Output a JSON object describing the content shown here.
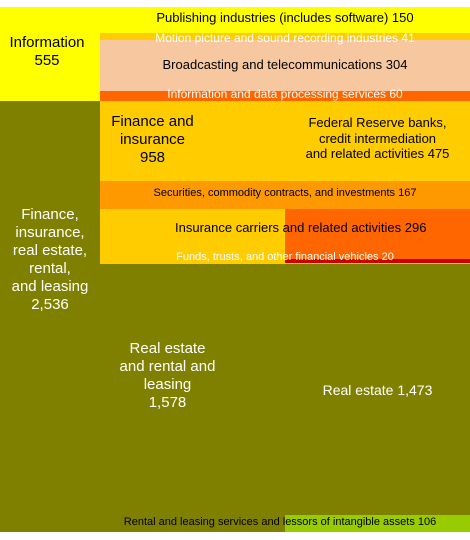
{
  "chart_data": {
    "type": "treemap",
    "title": "",
    "colors": {
      "yellow": "#ffff00",
      "gold": "#ffcc00",
      "peach": "#f7c8a0",
      "orange": "#ff9900",
      "dark_orange": "#ff6600",
      "red_orange": "#ff3300",
      "dark_red": "#cc0000",
      "olive": "#808000",
      "yellow_green": "#99cc00",
      "white": "#ffffff",
      "black": "#000000"
    },
    "groups": [
      {
        "name": "Information",
        "value": 555,
        "value_label": "555",
        "children": [
          {
            "name": "Publishing industries (includes software)",
            "value": 150,
            "value_label": "150"
          },
          {
            "name": "Motion picture and sound recording industries",
            "value": 41,
            "value_label": "41"
          },
          {
            "name": "Broadcasting and telecommunications",
            "value": 304,
            "value_label": "304"
          },
          {
            "name": "Information and data processing services",
            "value": 60,
            "value_label": "60"
          }
        ]
      },
      {
        "name": "Finance, insurance, real estate, rental, and leasing",
        "value": 2536,
        "value_label": "2,536",
        "children": [
          {
            "name": "Finance and insurance",
            "value": 958,
            "value_label": "958",
            "children": [
              {
                "name": "Federal Reserve banks, credit intermediation and related activities",
                "value": 475,
                "value_label": "475"
              },
              {
                "name": "Securities, commodity contracts, and investments",
                "value": 167,
                "value_label": "167"
              },
              {
                "name": "Insurance carriers and related activities",
                "value": 296,
                "value_label": "296"
              },
              {
                "name": "Funds, trusts, and other financial vehicles",
                "value": 20,
                "value_label": "20"
              }
            ]
          },
          {
            "name": "Real estate and rental and leasing",
            "value": 1578,
            "value_label": "1,578",
            "children": [
              {
                "name": "Real estate",
                "value": 1473,
                "value_label": "1,473"
              },
              {
                "name": "Rental and leasing services and lessors of intangible assets",
                "value": 106,
                "value_label": "106"
              }
            ]
          }
        ]
      }
    ],
    "labels": {
      "information": "Information\n555",
      "fire": "Finance,\ninsurance,\nreal estate,\nrental,\nand leasing\n2,536",
      "finance": "Finance and\ninsurance\n958",
      "real_estate_rental": "Real estate\nand rental and\nleasing\n1,578",
      "publishing": "Publishing industries (includes software)  150",
      "motion": "Motion picture and sound recording industries 41",
      "broadcasting": "Broadcasting and telecommunications  304",
      "data_processing": "Information and data processing services 60",
      "federal_reserve": "Federal Reserve banks,\ncredit intermediation\nand related activities  475",
      "securities": "Securities, commodity contracts, and investments 167",
      "insurance": "Insurance carriers and related activities 296",
      "funds": "Funds, trusts, and other financial vehicles 20",
      "real_estate": "Real estate  1,473",
      "rental": "Rental and leasing services and lessors of intangible assets 106"
    }
  }
}
